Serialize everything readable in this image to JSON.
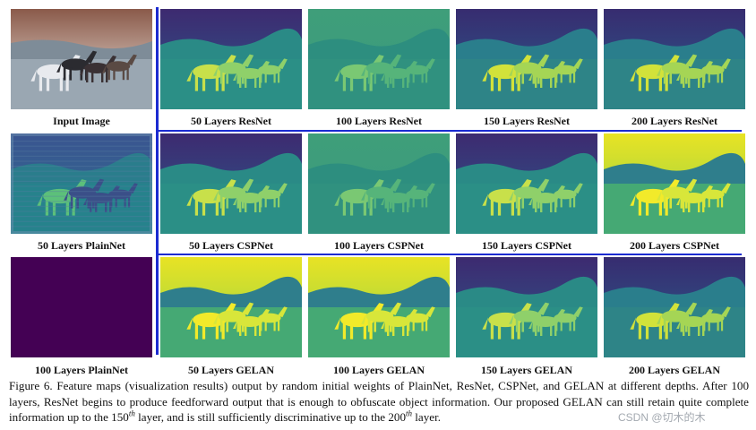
{
  "figure": {
    "cells": [
      {
        "label": "Input Image",
        "style": "photo"
      },
      {
        "label": "50 Layers ResNet",
        "style": "viridis-mid"
      },
      {
        "label": "100 Layers ResNet",
        "style": "viridis-flat"
      },
      {
        "label": "150 Layers ResNet",
        "style": "viridis-dark"
      },
      {
        "label": "200 Layers ResNet",
        "style": "viridis-dark"
      },
      {
        "label": "50 Layers PlainNet",
        "style": "viridis-noisy"
      },
      {
        "label": "50 Layers CSPNet",
        "style": "viridis-mid"
      },
      {
        "label": "100 Layers CSPNet",
        "style": "viridis-flat"
      },
      {
        "label": "150 Layers CSPNet",
        "style": "viridis-mid"
      },
      {
        "label": "200 Layers CSPNet",
        "style": "viridis-bright"
      },
      {
        "label": "100 Layers PlainNet",
        "style": "solid-purple"
      },
      {
        "label": "50 Layers GELAN",
        "style": "viridis-bright"
      },
      {
        "label": "100 Layers GELAN",
        "style": "viridis-bright"
      },
      {
        "label": "150 Layers GELAN",
        "style": "viridis-mid"
      },
      {
        "label": "200 Layers GELAN",
        "style": "viridis-dark"
      }
    ],
    "colors": {
      "separator": "#1b2bd1",
      "viridis_purple": "#440154",
      "viridis_blue": "#31688e",
      "viridis_teal": "#21918c",
      "viridis_green": "#35b779",
      "viridis_yellow": "#fde725"
    }
  },
  "caption": {
    "part1": "Figure 6. Feature maps (visualization results) output by random initial weights of PlainNet, ResNet, CSPNet, and GELAN at different depths. After 100 layers, ResNet begins to produce feedforward output that is enough to obfuscate object information. Our proposed GELAN can still retain quite complete information up to the 150",
    "sup1": "th",
    "part2": " layer, and is still sufficiently discriminative up to the 200",
    "sup2": "th",
    "part3": " layer."
  },
  "watermark": "CSDN @切木的木"
}
